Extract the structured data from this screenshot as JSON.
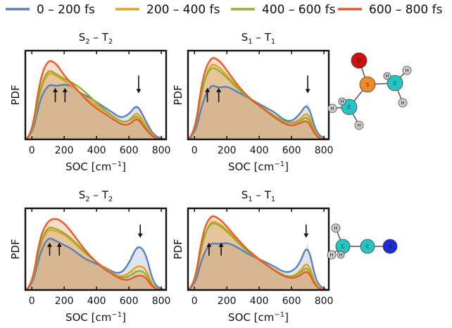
{
  "legend": [
    {
      "label": "0 – 200 fs",
      "color": "#5a7fbf"
    },
    {
      "label": "200 – 400 fs",
      "color": "#e8a020"
    },
    {
      "label": "400 – 600 fs",
      "color": "#8fb030"
    },
    {
      "label": "600 – 800 fs",
      "color": "#e85a2a"
    }
  ],
  "chart_data": [
    {
      "type": "area",
      "title": "S2 – T2",
      "title_main": "S",
      "title_sub1": "2",
      "title_sep": " – T",
      "title_sub2": "2",
      "xlabel_main": "SOC [cm",
      "xlabel_sup": "−1",
      "xlabel_close": "]",
      "ylabel": "PDF",
      "xlim": [
        -40,
        830
      ],
      "ylim": [
        0,
        1.0
      ],
      "xticks": [
        "0",
        "200",
        "400",
        "600",
        "800"
      ],
      "x": [
        -40,
        0,
        50,
        100,
        150,
        200,
        250,
        300,
        350,
        400,
        450,
        500,
        550,
        600,
        650,
        700,
        750,
        800,
        830
      ],
      "series": [
        {
          "name": "0 – 200 fs",
          "values": [
            0.0,
            0.02,
            0.45,
            0.62,
            0.6,
            0.62,
            0.6,
            0.52,
            0.48,
            0.42,
            0.36,
            0.3,
            0.24,
            0.28,
            0.4,
            0.22,
            0.05,
            0.01,
            0.0
          ]
        },
        {
          "name": "200 – 400 fs",
          "values": [
            0.0,
            0.03,
            0.55,
            0.76,
            0.72,
            0.66,
            0.6,
            0.52,
            0.45,
            0.38,
            0.32,
            0.26,
            0.2,
            0.2,
            0.32,
            0.17,
            0.03,
            0.0,
            0.0
          ]
        },
        {
          "name": "400 – 600 fs",
          "values": [
            0.0,
            0.03,
            0.58,
            0.79,
            0.74,
            0.68,
            0.64,
            0.58,
            0.5,
            0.41,
            0.33,
            0.26,
            0.2,
            0.2,
            0.28,
            0.14,
            0.02,
            0.0,
            0.0
          ]
        },
        {
          "name": "600 – 800 fs",
          "values": [
            0.0,
            0.04,
            0.68,
            0.9,
            0.86,
            0.72,
            0.62,
            0.52,
            0.42,
            0.35,
            0.29,
            0.23,
            0.17,
            0.16,
            0.25,
            0.12,
            0.02,
            0.0,
            0.0
          ]
        }
      ],
      "annotations": [
        {
          "x": 145,
          "direction": "up"
        },
        {
          "x": 205,
          "direction": "up"
        },
        {
          "x": 660,
          "direction": "down"
        }
      ]
    },
    {
      "type": "area",
      "title": "S1 – T1",
      "title_main": "S",
      "title_sub1": "1",
      "title_sep": " – T",
      "title_sub2": "1",
      "xlabel_main": "SOC [cm",
      "xlabel_sup": "−1",
      "xlabel_close": "]",
      "ylabel": "PDF",
      "xlim": [
        -40,
        830
      ],
      "ylim": [
        0,
        1.0
      ],
      "xticks": [
        "0",
        "200",
        "400",
        "600",
        "800"
      ],
      "x": [
        -40,
        0,
        50,
        100,
        150,
        200,
        250,
        300,
        350,
        400,
        450,
        500,
        550,
        600,
        650,
        700,
        750,
        800,
        830
      ],
      "series": [
        {
          "name": "0 – 200 fs",
          "values": [
            0.0,
            0.03,
            0.42,
            0.62,
            0.58,
            0.6,
            0.55,
            0.5,
            0.45,
            0.4,
            0.35,
            0.3,
            0.22,
            0.2,
            0.28,
            0.42,
            0.08,
            0.01,
            0.0
          ]
        },
        {
          "name": "200 – 400 fs",
          "values": [
            0.0,
            0.04,
            0.6,
            0.86,
            0.82,
            0.72,
            0.62,
            0.52,
            0.44,
            0.38,
            0.32,
            0.26,
            0.2,
            0.18,
            0.22,
            0.32,
            0.05,
            0.0,
            0.0
          ]
        },
        {
          "name": "400 – 600 fs",
          "values": [
            0.0,
            0.04,
            0.62,
            0.82,
            0.78,
            0.7,
            0.6,
            0.52,
            0.44,
            0.38,
            0.32,
            0.26,
            0.2,
            0.18,
            0.2,
            0.27,
            0.04,
            0.0,
            0.0
          ]
        },
        {
          "name": "600 – 800 fs",
          "values": [
            0.0,
            0.05,
            0.7,
            0.93,
            0.9,
            0.78,
            0.65,
            0.54,
            0.45,
            0.38,
            0.31,
            0.24,
            0.18,
            0.15,
            0.18,
            0.22,
            0.03,
            0.0,
            0.0
          ]
        }
      ],
      "annotations": [
        {
          "x": 80,
          "direction": "up"
        },
        {
          "x": 150,
          "direction": "up"
        },
        {
          "x": 700,
          "direction": "down"
        }
      ]
    },
    {
      "type": "area",
      "title": "S2 – T2",
      "title_main": "S",
      "title_sub1": "2",
      "title_sep": " – T",
      "title_sub2": "2",
      "xlabel_main": "SOC [cm",
      "xlabel_sup": "−1",
      "xlabel_close": "]",
      "ylabel": "PDF",
      "xlim": [
        -40,
        830
      ],
      "ylim": [
        0,
        1.0
      ],
      "xticks": [
        "0",
        "200",
        "400",
        "600",
        "800"
      ],
      "x": [
        -40,
        0,
        50,
        100,
        150,
        200,
        250,
        300,
        350,
        400,
        450,
        500,
        550,
        600,
        650,
        700,
        750,
        800,
        830
      ],
      "series": [
        {
          "name": "0 – 200 fs",
          "values": [
            0.0,
            0.02,
            0.45,
            0.65,
            0.6,
            0.55,
            0.5,
            0.42,
            0.36,
            0.32,
            0.28,
            0.22,
            0.2,
            0.32,
            0.55,
            0.48,
            0.08,
            0.01,
            0.0
          ]
        },
        {
          "name": "200 – 400 fs",
          "values": [
            0.0,
            0.03,
            0.55,
            0.75,
            0.72,
            0.68,
            0.6,
            0.5,
            0.42,
            0.34,
            0.27,
            0.2,
            0.16,
            0.2,
            0.3,
            0.28,
            0.04,
            0.0,
            0.0
          ]
        },
        {
          "name": "400 – 600 fs",
          "values": [
            0.0,
            0.03,
            0.57,
            0.78,
            0.75,
            0.7,
            0.62,
            0.52,
            0.42,
            0.34,
            0.26,
            0.2,
            0.15,
            0.16,
            0.24,
            0.22,
            0.03,
            0.0,
            0.0
          ]
        },
        {
          "name": "600 – 800 fs",
          "values": [
            0.0,
            0.04,
            0.65,
            0.85,
            0.88,
            0.82,
            0.7,
            0.56,
            0.44,
            0.34,
            0.25,
            0.19,
            0.13,
            0.12,
            0.18,
            0.17,
            0.02,
            0.0,
            0.0
          ]
        }
      ],
      "annotations": [
        {
          "x": 110,
          "direction": "up"
        },
        {
          "x": 170,
          "direction": "up"
        },
        {
          "x": 670,
          "direction": "down"
        }
      ]
    },
    {
      "type": "area",
      "title": "S1 – T1",
      "title_main": "S",
      "title_sub1": "1",
      "title_sep": " – T",
      "title_sub2": "1",
      "xlabel_main": "SOC [cm",
      "xlabel_sup": "−1",
      "xlabel_close": "]",
      "ylabel": "PDF",
      "xlim": [
        -40,
        830
      ],
      "ylim": [
        0,
        1.0
      ],
      "xticks": [
        "0",
        "200",
        "400",
        "600",
        "800"
      ],
      "x": [
        -40,
        0,
        50,
        100,
        150,
        200,
        250,
        300,
        350,
        400,
        450,
        500,
        550,
        600,
        650,
        700,
        750,
        800,
        830
      ],
      "series": [
        {
          "name": "0 – 200 fs",
          "values": [
            0.0,
            0.03,
            0.42,
            0.58,
            0.56,
            0.58,
            0.54,
            0.48,
            0.42,
            0.38,
            0.33,
            0.28,
            0.22,
            0.22,
            0.32,
            0.58,
            0.1,
            0.01,
            0.0
          ]
        },
        {
          "name": "200 – 400 fs",
          "values": [
            0.0,
            0.04,
            0.6,
            0.85,
            0.82,
            0.74,
            0.64,
            0.54,
            0.46,
            0.38,
            0.3,
            0.24,
            0.18,
            0.16,
            0.22,
            0.36,
            0.05,
            0.0,
            0.0
          ]
        },
        {
          "name": "400 – 600 fs",
          "values": [
            0.0,
            0.04,
            0.62,
            0.83,
            0.8,
            0.72,
            0.62,
            0.52,
            0.44,
            0.37,
            0.3,
            0.24,
            0.18,
            0.16,
            0.2,
            0.3,
            0.04,
            0.0,
            0.0
          ]
        },
        {
          "name": "600 – 800 fs",
          "values": [
            0.0,
            0.05,
            0.7,
            0.92,
            0.88,
            0.78,
            0.66,
            0.55,
            0.45,
            0.37,
            0.3,
            0.23,
            0.17,
            0.14,
            0.17,
            0.25,
            0.03,
            0.0,
            0.0
          ]
        }
      ],
      "annotations": [
        {
          "x": 90,
          "direction": "up"
        },
        {
          "x": 165,
          "direction": "up"
        },
        {
          "x": 690,
          "direction": "down"
        }
      ]
    }
  ],
  "molecules": [
    {
      "atoms": [
        {
          "label": "O",
          "color": "#cc1111"
        },
        {
          "label": "S",
          "color": "#f08a24"
        },
        {
          "label": "C",
          "color": "#22c4c4"
        },
        {
          "label": "C",
          "color": "#22c4c4"
        },
        {
          "label": "H",
          "color": "#cfcfcf"
        },
        {
          "label": "H",
          "color": "#cfcfcf"
        },
        {
          "label": "H",
          "color": "#cfcfcf"
        },
        {
          "label": "H",
          "color": "#cfcfcf"
        },
        {
          "label": "H",
          "color": "#cfcfcf"
        },
        {
          "label": "H",
          "color": "#cfcfcf"
        }
      ]
    },
    {
      "atoms": [
        {
          "label": "C",
          "color": "#22c4c4"
        },
        {
          "label": "C",
          "color": "#22c4c4"
        },
        {
          "label": "N",
          "color": "#1a2be0"
        },
        {
          "label": "H",
          "color": "#cfcfcf"
        },
        {
          "label": "H",
          "color": "#cfcfcf"
        },
        {
          "label": "H",
          "color": "#cfcfcf"
        }
      ]
    }
  ]
}
